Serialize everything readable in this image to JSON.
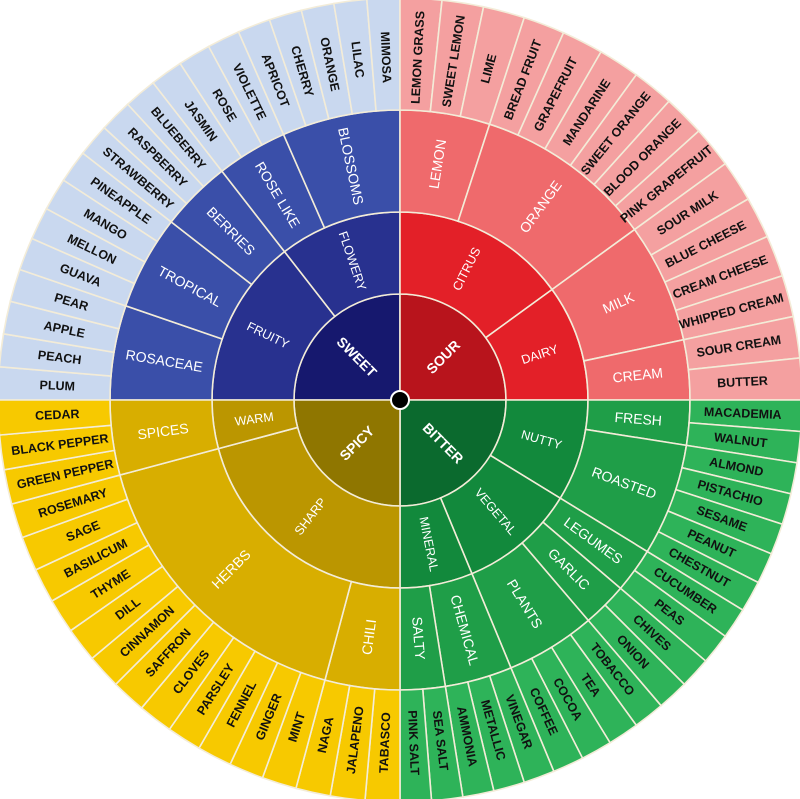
{
  "wheel": {
    "quadrants": [
      {
        "name": "SWEET",
        "colors": {
          "core": "#16186e",
          "ring2": "#28318f",
          "ring3": "#3a4fa9",
          "outer": "#c9d8ef",
          "label3": "#ffffff"
        },
        "children": [
          {
            "name": "FRUITY",
            "children": [
              {
                "name": "ROSACEAE",
                "leaves": [
                  "PLUM",
                  "PEACH",
                  "APPLE",
                  "PEAR"
                ]
              },
              {
                "name": "TROPICAL",
                "leaves": [
                  "GUAVA",
                  "MELLON",
                  "MANGO",
                  "PINEAPPLE"
                ]
              },
              {
                "name": "BERRIES",
                "leaves": [
                  "STRAWBERRY",
                  "RASPBERRY",
                  "BLUEBERRY"
                ]
              }
            ]
          },
          {
            "name": "FLOWERY",
            "children": [
              {
                "name": "ROSE LIKE",
                "leaves": [
                  "JASMIN",
                  "ROSE",
                  "VIOLETTE"
                ]
              },
              {
                "name": "BLOSSOMS",
                "leaves": [
                  "APRICOT",
                  "CHERRY",
                  "ORANGE",
                  "LILAC",
                  "MIMOSA"
                ]
              }
            ]
          }
        ]
      },
      {
        "name": "SOUR",
        "colors": {
          "core": "#b8141c",
          "ring2": "#e32028",
          "ring3": "#ef6a6c",
          "outer": "#f4a0a0",
          "label3": "#ffffff"
        },
        "children": [
          {
            "name": "CITRUS",
            "children": [
              {
                "name": "LEMON",
                "leaves": [
                  "LEMON GRASS",
                  "SWEET LEMON",
                  "LIME"
                ]
              },
              {
                "name": "ORANGE",
                "leaves": [
                  "BREAD FRUIT",
                  "GRAPEFRUIT",
                  "MANDARINE",
                  "SWEET ORANGE",
                  "BLOOD ORANGE",
                  "PINK GRAPEFRUIT"
                ]
              }
            ]
          },
          {
            "name": "DAIRY",
            "children": [
              {
                "name": "MILK",
                "leaves": [
                  "SOUR MILK",
                  "BLUE CHEESE",
                  "CREAM CHEESE",
                  "WHIPPED CREAM"
                ]
              },
              {
                "name": "CREAM",
                "leaves": [
                  "SOUR CREAM",
                  "BUTTER"
                ]
              }
            ]
          }
        ]
      },
      {
        "name": "BITTER",
        "colors": {
          "core": "#0b6a2e",
          "ring2": "#12893c",
          "ring3": "#1f9e48",
          "outer": "#2eb359",
          "label3": "#ffffff"
        },
        "children": [
          {
            "name": "NUTTY",
            "children": [
              {
                "name": "FRESH",
                "leaves": [
                  "MACADEMIA",
                  "WALNUT"
                ]
              },
              {
                "name": "ROASTED",
                "leaves": [
                  "ALMOND",
                  "PISTACHIO",
                  "SESAME",
                  "PEANUT",
                  "CHESTNUT"
                ]
              }
            ]
          },
          {
            "name": "VEGETAL",
            "children": [
              {
                "name": "LEGUMES",
                "leaves": [
                  "CUCUMBER",
                  "PEAS"
                ]
              },
              {
                "name": "GARLIC",
                "leaves": [
                  "CHIVES",
                  "ONION"
                ]
              },
              {
                "name": "PLANTS",
                "leaves": [
                  "TOBACCO",
                  "TEA",
                  "COCOA",
                  "COFFEE"
                ]
              }
            ]
          },
          {
            "name": "MINERAL",
            "children": [
              {
                "name": "CHEMICAL",
                "leaves": [
                  "VINEGAR",
                  "METALLIC",
                  "AMMONIA"
                ]
              },
              {
                "name": "SALTY",
                "leaves": [
                  "SEA SALT",
                  "PINK SALT"
                ]
              }
            ]
          }
        ]
      },
      {
        "name": "SPICY",
        "colors": {
          "core": "#8f7600",
          "ring2": "#bb9600",
          "ring3": "#d8ae00",
          "outer": "#f7c900",
          "label3": "#fbeeb0"
        },
        "children": [
          {
            "name": "SHARP",
            "children": [
              {
                "name": "CHILI",
                "leaves": [
                  "TABASCO",
                  "JALAPENO",
                  "NAGA"
                ]
              },
              {
                "name": "HERBS",
                "leaves": [
                  "MINT",
                  "GINGER",
                  "FENNEL",
                  "PARSLEY",
                  "CLOVES",
                  "SAFFRON",
                  "CINNAMON",
                  "DILL",
                  "THYME",
                  "BASILICUM",
                  "SAGE",
                  "ROSEMARY"
                ]
              }
            ]
          },
          {
            "name": "WARM",
            "children": [
              {
                "name": "SPICES",
                "leaves": [
                  "GREEN PEPPER",
                  "BLACK PEPPER",
                  "CEDAR"
                ]
              }
            ]
          }
        ]
      }
    ],
    "center_dot_color": "#000000"
  }
}
